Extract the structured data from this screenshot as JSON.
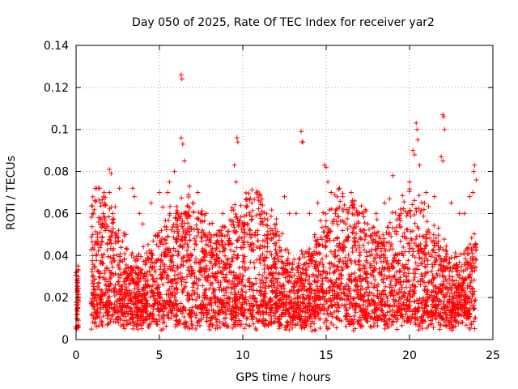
{
  "chart_data": {
    "type": "scatter",
    "title": "Day 050 of 2025, Rate Of TEC Index for receiver yar2",
    "xlabel": "GPS time / hours",
    "ylabel": "ROTI / TECUs",
    "xlim": [
      0,
      25
    ],
    "ylim": [
      0,
      0.14
    ],
    "xticks": [
      0,
      5,
      10,
      15,
      20,
      25
    ],
    "yticks": [
      0,
      0.02,
      0.04,
      0.06,
      0.08,
      0.1,
      0.12,
      0.14
    ],
    "xtick_labels": [
      "0",
      "5",
      "10",
      "15",
      "20",
      "25"
    ],
    "ytick_labels": [
      "0",
      "0.02",
      "0.04",
      "0.06",
      "0.08",
      "0.1",
      "0.12",
      "0.14"
    ],
    "grid": true,
    "marker": "+",
    "color": "#ff0000",
    "series": [
      {
        "x": [
          0.02,
          0.05,
          0.08,
          0.1,
          0.12,
          0.15,
          0.03,
          0.06,
          0.09,
          0.11,
          1.0,
          1.2,
          1.5,
          1.8,
          2.0,
          2.1,
          2.0,
          2.2,
          2.6,
          3.0,
          3.4,
          3.5,
          3.8,
          4.0,
          4.5,
          5.0,
          5.2,
          5.5,
          5.6,
          5.9,
          6.0,
          6.3,
          6.35,
          6.3,
          6.4,
          6.5,
          6.8,
          7.0,
          7.3,
          7.5,
          7.8,
          8.0,
          8.4,
          8.8,
          9.2,
          9.5,
          9.65,
          9.7,
          9.6,
          10.0,
          10.5,
          11.0,
          11.5,
          12.0,
          12.5,
          12.8,
          13.2,
          13.5,
          13.6,
          13.55,
          14.0,
          14.5,
          14.9,
          15.0,
          15.1,
          15.3,
          15.6,
          16.0,
          16.5,
          16.7,
          17.0,
          17.5,
          18.0,
          18.5,
          18.8,
          19.0,
          19.5,
          20.0,
          20.2,
          20.4,
          20.45,
          20.5,
          20.3,
          20.6,
          21.0,
          21.5,
          21.9,
          22.0,
          22.05,
          22.1,
          22.0,
          22.5,
          23.0,
          23.3,
          23.6,
          23.8,
          23.9,
          23.85,
          24.0
        ],
        "y": [
          0.005,
          0.014,
          0.02,
          0.028,
          0.035,
          0.018,
          0.01,
          0.024,
          0.012,
          0.03,
          0.05,
          0.04,
          0.045,
          0.055,
          0.081,
          0.079,
          0.07,
          0.06,
          0.072,
          0.05,
          0.072,
          0.068,
          0.06,
          0.055,
          0.065,
          0.07,
          0.063,
          0.07,
          0.075,
          0.08,
          0.06,
          0.126,
          0.124,
          0.096,
          0.093,
          0.085,
          0.073,
          0.065,
          0.07,
          0.06,
          0.06,
          0.055,
          0.05,
          0.06,
          0.048,
          0.083,
          0.096,
          0.094,
          0.075,
          0.04,
          0.045,
          0.038,
          0.05,
          0.055,
          0.068,
          0.06,
          0.06,
          0.099,
          0.094,
          0.094,
          0.06,
          0.065,
          0.083,
          0.082,
          0.075,
          0.07,
          0.062,
          0.068,
          0.07,
          0.066,
          0.06,
          0.055,
          0.06,
          0.065,
          0.067,
          0.078,
          0.06,
          0.075,
          0.09,
          0.103,
          0.1,
          0.095,
          0.088,
          0.083,
          0.07,
          0.068,
          0.087,
          0.107,
          0.106,
          0.1,
          0.085,
          0.065,
          0.06,
          0.06,
          0.068,
          0.07,
          0.083,
          0.08,
          0.076
        ]
      }
    ]
  }
}
